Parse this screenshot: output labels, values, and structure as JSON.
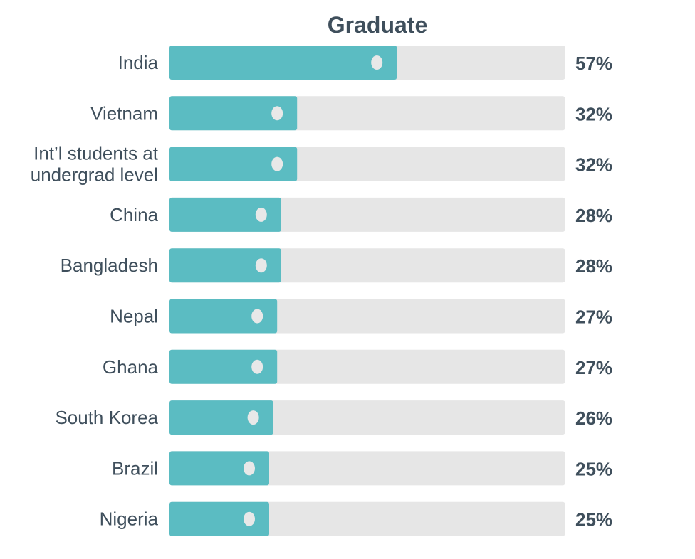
{
  "chart_data": {
    "type": "bar",
    "orientation": "horizontal",
    "title": "Graduate",
    "categories": [
      "India",
      "Vietnam",
      "Int’l students at undergrad level",
      "China",
      "Bangladesh",
      "Nepal",
      "Ghana",
      "South Korea",
      "Brazil",
      "Nigeria"
    ],
    "category_lines": [
      [
        "India"
      ],
      [
        "Vietnam"
      ],
      [
        "Int’l students at",
        "undergrad level"
      ],
      [
        "China"
      ],
      [
        "Bangladesh"
      ],
      [
        "Nepal"
      ],
      [
        "Ghana"
      ],
      [
        "South Korea"
      ],
      [
        "Brazil"
      ],
      [
        "Nigeria"
      ]
    ],
    "values": [
      57,
      32,
      32,
      28,
      28,
      27,
      27,
      26,
      25,
      25
    ],
    "value_labels": [
      "57%",
      "32%",
      "32%",
      "28%",
      "28%",
      "27%",
      "27%",
      "26%",
      "25%",
      "25%"
    ],
    "xlim": [
      0,
      100
    ],
    "grid": false,
    "legend": "none"
  },
  "colors": {
    "bar_fill": "#5bbcc2",
    "track": "#e6e6e6",
    "marker": "#e8e8e8",
    "title": "#3f4f5c",
    "category_text": "#3f4f5c",
    "value_text": "#3f4f5c"
  }
}
